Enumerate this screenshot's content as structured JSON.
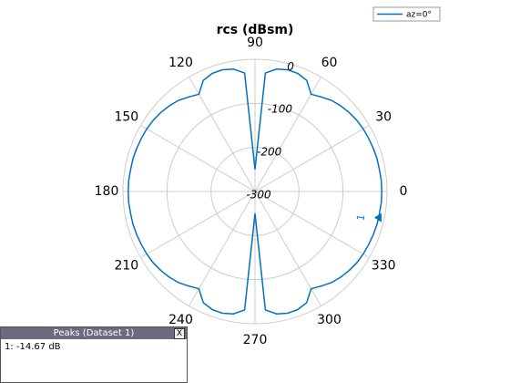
{
  "chart_data": {
    "type": "polar",
    "title": "rcs (dBsm)",
    "rlim": [
      -300,
      0
    ],
    "rticks": [
      0,
      -100,
      -200,
      -300
    ],
    "angle_ticks": [
      0,
      30,
      60,
      90,
      120,
      150,
      180,
      210,
      240,
      270,
      300,
      330
    ],
    "grid": true,
    "legend": "top-right",
    "series": [
      {
        "name": "az=0°",
        "color": "#0072bd",
        "x": [
          0,
          5,
          10,
          15,
          20,
          25,
          30,
          35,
          40,
          45,
          50,
          55,
          60,
          65,
          70,
          75,
          80,
          85,
          90,
          95,
          100,
          105,
          110,
          115,
          120,
          125,
          130,
          135,
          140,
          145,
          150,
          155,
          160,
          165,
          170,
          175,
          180,
          185,
          190,
          195,
          200,
          205,
          210,
          215,
          220,
          225,
          230,
          235,
          240,
          245,
          250,
          255,
          260,
          265,
          270,
          275,
          280,
          285,
          290,
          295,
          300,
          305,
          310,
          315,
          320,
          325,
          330,
          335,
          340,
          345,
          350,
          355
        ],
        "values": [
          -12,
          -12,
          -13,
          -13,
          -14,
          -15,
          -16,
          -18,
          -21,
          -25,
          -30,
          -38,
          -45,
          -22,
          -15,
          -14,
          -18,
          -30,
          -250,
          -30,
          -18,
          -14,
          -15,
          -22,
          -45,
          -38,
          -30,
          -25,
          -21,
          -18,
          -16,
          -15,
          -14,
          -13,
          -13,
          -12,
          -12,
          -12,
          -13,
          -13,
          -14,
          -15,
          -16,
          -18,
          -21,
          -25,
          -30,
          -38,
          -45,
          -22,
          -15,
          -14,
          -18,
          -30,
          -250,
          -30,
          -18,
          -14,
          -15,
          -22,
          -45,
          -38,
          -30,
          -25,
          -21,
          -18,
          -16,
          -15,
          -14,
          -13,
          -13,
          -12
        ]
      }
    ],
    "peak": {
      "label": "1",
      "angle": 348,
      "value": -14.67
    },
    "peaks_table": {
      "title": "Peaks (Dataset 1)",
      "close": "X",
      "rows": [
        "1: -14.67 dB"
      ]
    }
  }
}
